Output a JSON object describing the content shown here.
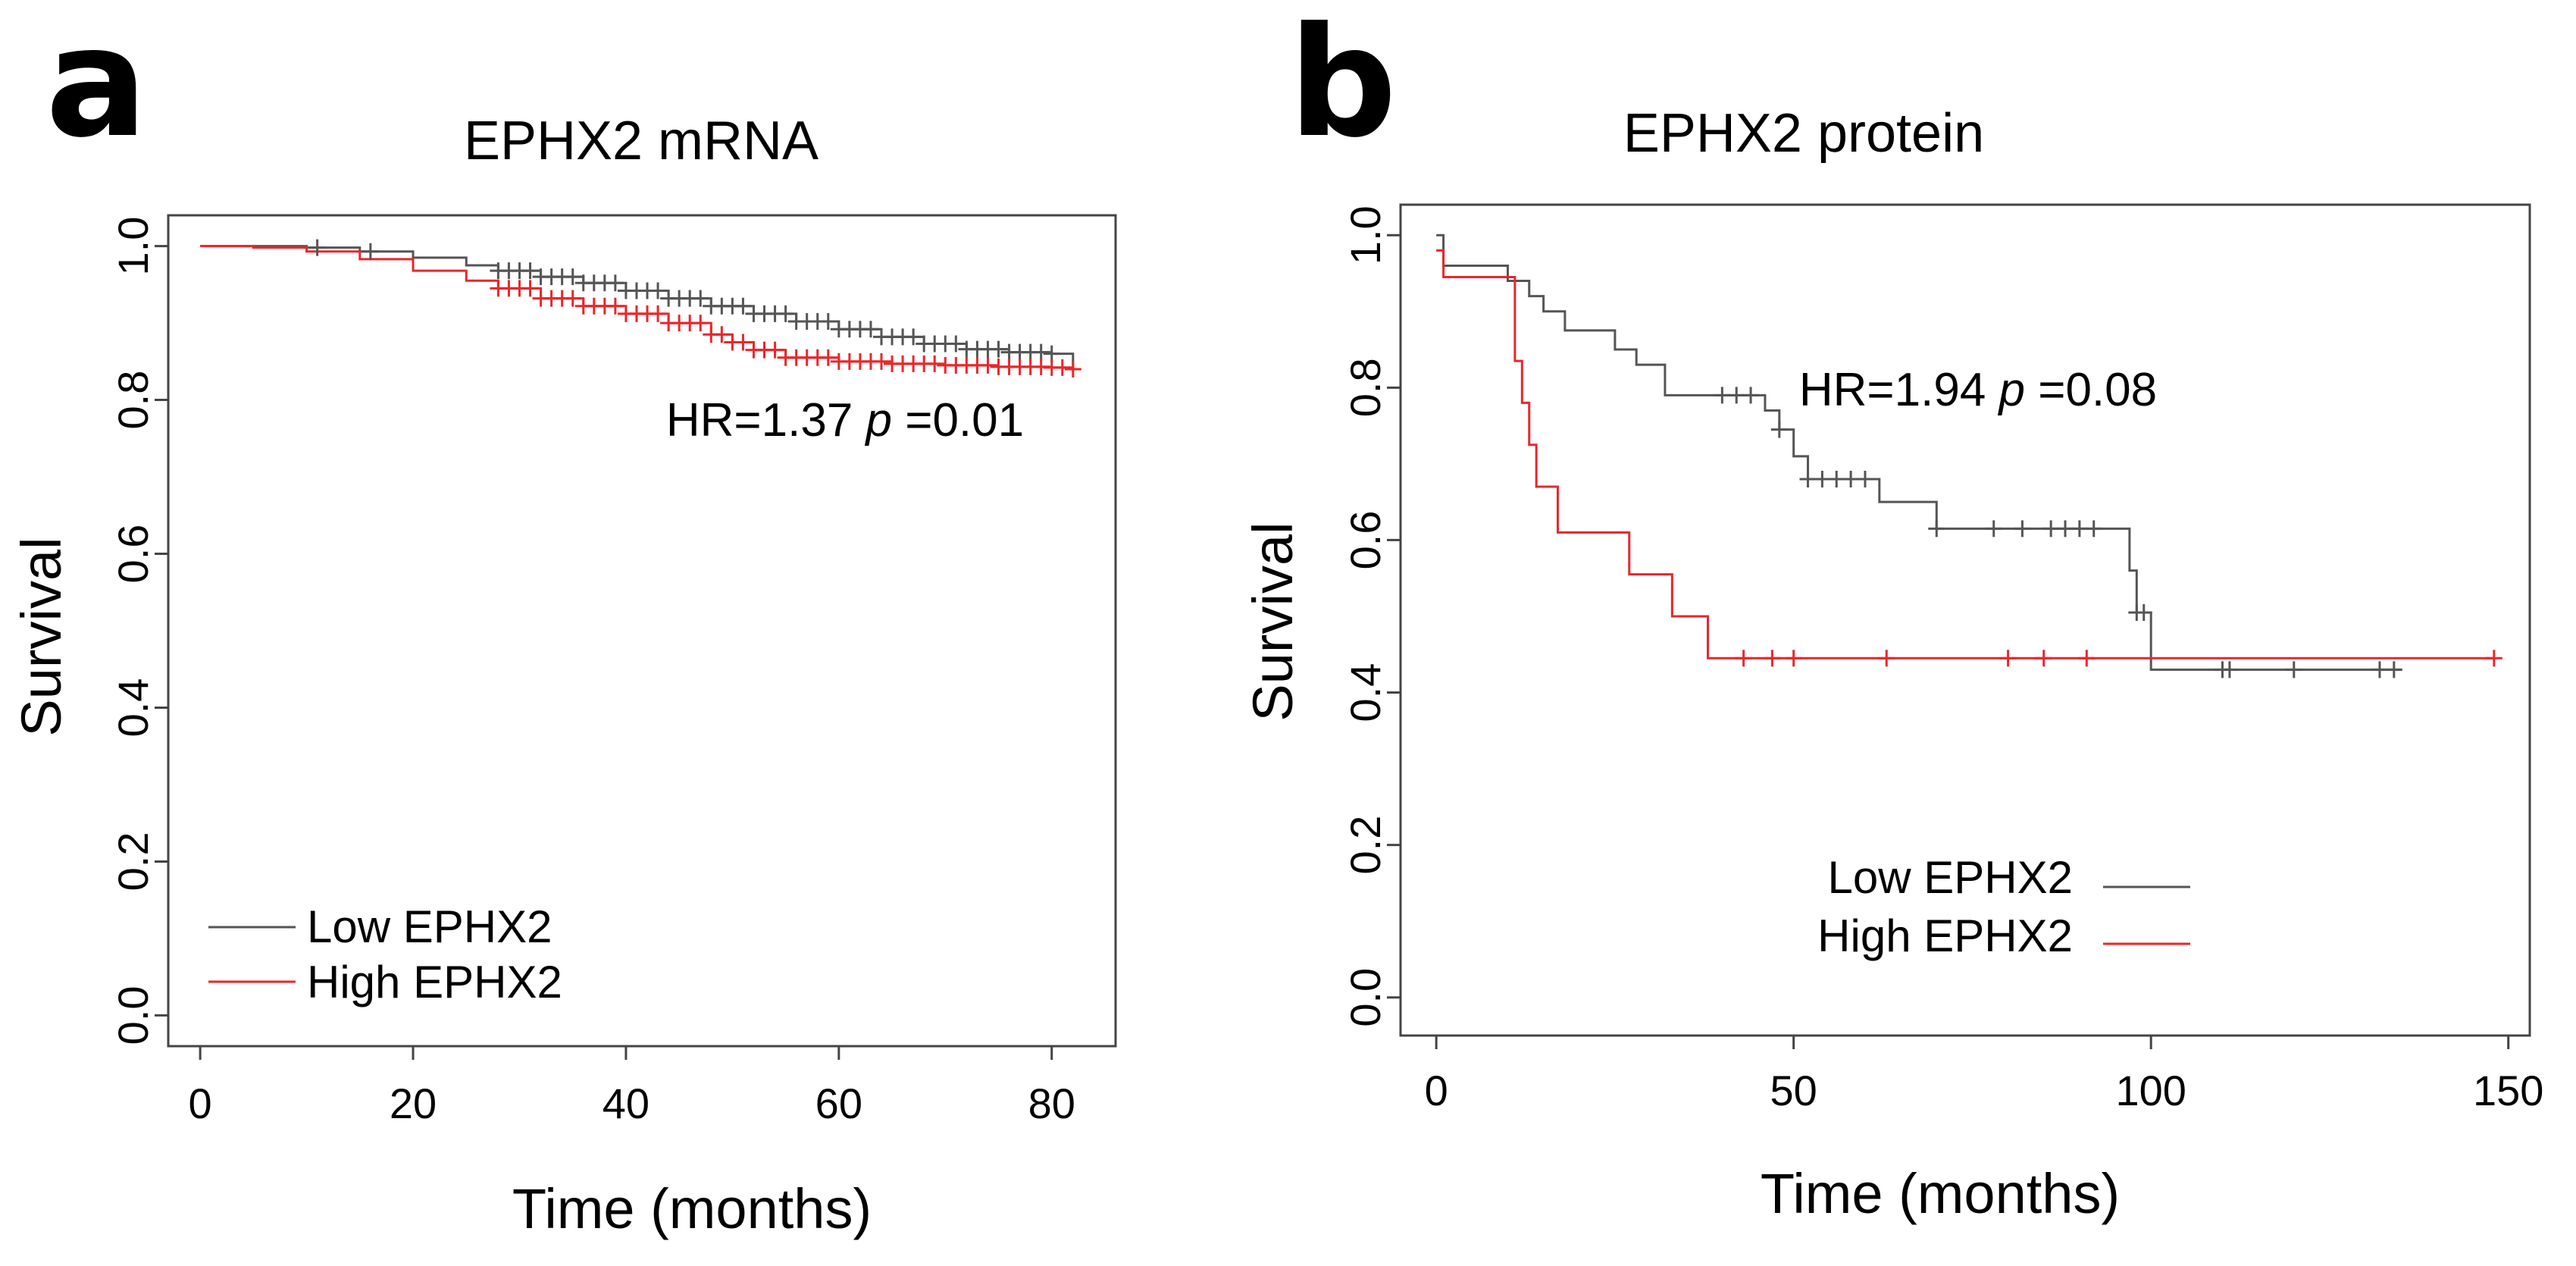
{
  "chart_data": [
    {
      "panel_letter": "a",
      "type": "line",
      "subtype": "kaplan-meier",
      "title": "EPHX2 mRNA",
      "xlabel": "Time (months)",
      "ylabel": "Survival",
      "xlim": [
        -3,
        86
      ],
      "ylim": [
        -0.04,
        1.04
      ],
      "x_ticks": [
        0,
        20,
        40,
        60,
        80
      ],
      "x_tick_labels": [
        "0",
        "20",
        "40",
        "60",
        "80"
      ],
      "y_ticks": [
        0.0,
        0.2,
        0.4,
        0.6,
        0.8,
        1.0
      ],
      "y_tick_labels": [
        "0.0",
        "0.2",
        "0.4",
        "0.6",
        "0.8",
        "1.0"
      ],
      "grid": false,
      "legend_position": "bottom-left",
      "annotation": {
        "prefix": "HR=1.37 ",
        "p_symbol": "p",
        "suffix": " =0.01"
      },
      "series": [
        {
          "name": "Low EPHX2",
          "color": "#555555",
          "x": [
            0,
            5,
            10,
            15,
            20,
            25,
            28,
            32,
            36,
            40,
            44,
            48,
            52,
            56,
            60,
            64,
            68,
            72,
            76,
            80,
            82
          ],
          "y": [
            1.0,
            1.0,
            0.998,
            0.993,
            0.985,
            0.975,
            0.968,
            0.96,
            0.952,
            0.942,
            0.932,
            0.922,
            0.912,
            0.902,
            0.892,
            0.882,
            0.873,
            0.866,
            0.862,
            0.86,
            0.84
          ],
          "censor_x": [
            11,
            16,
            28,
            29,
            30,
            31,
            32,
            33,
            34,
            35,
            36,
            37,
            38,
            39,
            40,
            41,
            42,
            43,
            44,
            45,
            46,
            47,
            48,
            49,
            50,
            51,
            52,
            53,
            54,
            55,
            56,
            57,
            58,
            59,
            60,
            61,
            62,
            63,
            64,
            65,
            66,
            67,
            68,
            69,
            70,
            71,
            72,
            73,
            74,
            75,
            76,
            77,
            78,
            79,
            80
          ]
        },
        {
          "name": "High EPHX2",
          "color": "#e8272b",
          "x": [
            0,
            5,
            10,
            15,
            20,
            25,
            28,
            32,
            36,
            40,
            44,
            48,
            50,
            52,
            55,
            60,
            65,
            70,
            75,
            80,
            82
          ],
          "y": [
            1.0,
            0.998,
            0.993,
            0.983,
            0.968,
            0.955,
            0.945,
            0.932,
            0.922,
            0.912,
            0.9,
            0.885,
            0.875,
            0.865,
            0.855,
            0.85,
            0.847,
            0.845,
            0.843,
            0.842,
            0.84
          ],
          "censor_x": [
            28,
            29,
            30,
            31,
            32,
            33,
            34,
            35,
            36,
            37,
            38,
            39,
            40,
            41,
            42,
            43,
            44,
            45,
            46,
            47,
            48,
            49,
            50,
            51,
            52,
            53,
            54,
            55,
            56,
            57,
            58,
            59,
            60,
            61,
            62,
            63,
            64,
            65,
            66,
            67,
            68,
            69,
            70,
            71,
            72,
            73,
            74,
            75,
            76,
            77,
            78,
            79,
            80,
            81,
            82
          ]
        }
      ]
    },
    {
      "panel_letter": "b",
      "type": "line",
      "subtype": "kaplan-meier",
      "title": "EPHX2 protein",
      "xlabel": "Time (months)",
      "ylabel": "Survival",
      "xlim": [
        -5,
        153
      ],
      "ylim": [
        -0.05,
        1.04
      ],
      "x_ticks": [
        0,
        50,
        100,
        150
      ],
      "x_tick_labels": [
        "0",
        "50",
        "100",
        "150"
      ],
      "y_ticks": [
        0.0,
        0.2,
        0.4,
        0.6,
        0.8,
        1.0
      ],
      "y_tick_labels": [
        "0.0",
        "0.2",
        "0.4",
        "0.6",
        "0.8",
        "1.0"
      ],
      "grid": false,
      "legend_position": "bottom-right",
      "annotation": {
        "prefix": "HR=1.94 ",
        "p_symbol": "p",
        "suffix": " =0.08"
      },
      "series": [
        {
          "name": "Low EPHX2",
          "color": "#555555",
          "x": [
            0,
            1,
            3,
            10,
            13,
            15,
            18,
            22,
            25,
            28,
            32,
            38,
            40,
            46,
            48,
            50,
            52,
            55,
            58,
            62,
            65,
            70,
            75,
            80,
            88,
            92,
            95,
            97,
            98,
            100,
            110,
            120,
            135
          ],
          "y": [
            1.0,
            0.96,
            0.96,
            0.94,
            0.92,
            0.9,
            0.875,
            0.875,
            0.85,
            0.83,
            0.79,
            0.79,
            0.79,
            0.77,
            0.745,
            0.71,
            0.68,
            0.68,
            0.68,
            0.65,
            0.65,
            0.615,
            0.615,
            0.615,
            0.615,
            0.615,
            0.615,
            0.56,
            0.505,
            0.43,
            0.43,
            0.43,
            0.43
          ],
          "censor_x": [
            40,
            42,
            44,
            48,
            52,
            54,
            56,
            58,
            60,
            70,
            78,
            82,
            86,
            88,
            90,
            92,
            98,
            99,
            110,
            111,
            120,
            132,
            134
          ]
        },
        {
          "name": "High EPHX2",
          "color": "#e8272b",
          "x": [
            0,
            1,
            10,
            11,
            12,
            13,
            14,
            17,
            22,
            27,
            33,
            36,
            38,
            40,
            60,
            80,
            100,
            120,
            148
          ],
          "y": [
            0.98,
            0.945,
            0.945,
            0.835,
            0.78,
            0.725,
            0.67,
            0.61,
            0.61,
            0.555,
            0.5,
            0.5,
            0.445,
            0.445,
            0.445,
            0.445,
            0.445,
            0.445,
            0.445
          ],
          "censor_x": [
            43,
            47,
            50,
            63,
            80,
            85,
            91,
            148
          ]
        }
      ]
    }
  ]
}
